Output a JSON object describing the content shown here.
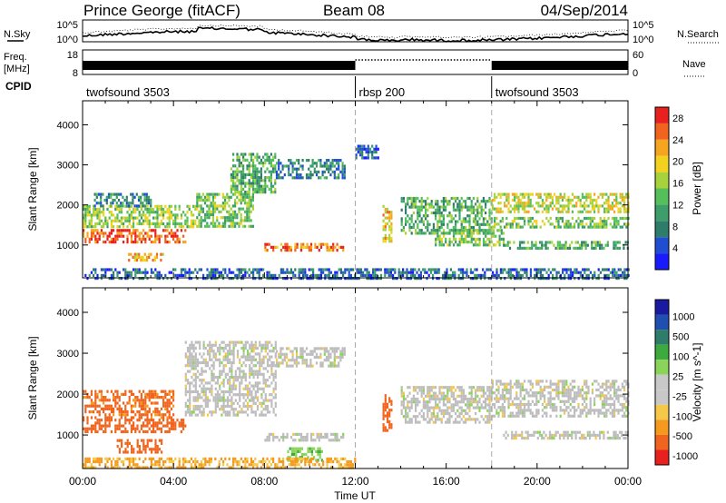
{
  "header": {
    "title": "Prince George (fitACF)",
    "beam": "Beam 08",
    "date": "04/Sep/2014"
  },
  "top_panels": {
    "nsky_label": "N.Sky",
    "nsearch_label": "N.Search",
    "noise_ticks": [
      "10^5",
      "10^0"
    ],
    "freq_label": "Freq.",
    "freq_unit": "[MHz]",
    "freq_ticks": [
      "18",
      "8"
    ],
    "nave_label": "Nave",
    "nave_ticks": [
      "60",
      "0"
    ],
    "cpid_label": "CPID",
    "cpid_segments": [
      {
        "label": "twofsound 3503",
        "start_h": 0,
        "end_h": 12
      },
      {
        "label": "rbsp 200",
        "start_h": 12,
        "end_h": 18
      },
      {
        "label": "twofsound 3503",
        "start_h": 18,
        "end_h": 24
      }
    ]
  },
  "time_axis": {
    "label": "Time UT",
    "ticks": [
      "00:00",
      "04:00",
      "08:00",
      "12:00",
      "16:00",
      "20:00",
      "00:00"
    ],
    "range_h": [
      0,
      24
    ]
  },
  "colors": {
    "power_scale": [
      "#1a1aff",
      "#1f4fd0",
      "#2e7d6a",
      "#3d9e6a",
      "#55c05a",
      "#a8d23c",
      "#f2d21e",
      "#f5a51e",
      "#f0641e",
      "#e8201e"
    ],
    "velocity_scale": [
      "#e8201e",
      "#f0641e",
      "#f59a1e",
      "#f5c84a",
      "#c8c8c8",
      "#c8c8c8",
      "#8ad45a",
      "#3daa3d",
      "#2e7d6a",
      "#1f4fb0",
      "#1a1aa0"
    ],
    "ground_scatter": "#bdbdbd"
  },
  "chart_data": [
    {
      "type": "heatmap",
      "name_role": "power-panel",
      "ylabel": "Slant Range [km]",
      "ylim": [
        180,
        4600
      ],
      "yticks": [
        1000,
        2000,
        3000,
        4000
      ],
      "x_unit": "hours UT",
      "colorbar_label": "Power [dB]",
      "colorbar_ticks": [
        "28",
        "24",
        "20",
        "16",
        "12",
        "8",
        "4"
      ],
      "colorbar_range": [
        0,
        30
      ],
      "echo_bands": [
        {
          "t0": 0.0,
          "t1": 4.5,
          "r0": 1050,
          "r1": 1400,
          "db": 26
        },
        {
          "t0": 0.0,
          "t1": 5.0,
          "r0": 1450,
          "r1": 2000,
          "db": 16
        },
        {
          "t0": 0.5,
          "t1": 3.0,
          "r0": 2000,
          "r1": 2300,
          "db": 8
        },
        {
          "t0": 2.0,
          "t1": 3.5,
          "r0": 600,
          "r1": 800,
          "db": 22
        },
        {
          "t0": 5.0,
          "t1": 7.5,
          "r0": 1500,
          "r1": 2300,
          "db": 14
        },
        {
          "t0": 6.5,
          "t1": 8.5,
          "r0": 2300,
          "r1": 3300,
          "db": 12
        },
        {
          "t0": 8.5,
          "t1": 11.5,
          "r0": 2700,
          "r1": 3150,
          "db": 8
        },
        {
          "t0": 8.0,
          "t1": 11.5,
          "r0": 850,
          "r1": 1050,
          "db": 24
        },
        {
          "t0": 12.0,
          "t1": 13.0,
          "r0": 3150,
          "r1": 3500,
          "db": 6
        },
        {
          "t0": 13.2,
          "t1": 13.6,
          "r0": 1100,
          "r1": 2000,
          "db": 20
        },
        {
          "t0": 14.0,
          "t1": 18.0,
          "r0": 1300,
          "r1": 2200,
          "db": 12
        },
        {
          "t0": 15.5,
          "t1": 18.5,
          "r0": 1000,
          "r1": 1400,
          "db": 14
        },
        {
          "t0": 18.0,
          "t1": 24.0,
          "r0": 1850,
          "r1": 2300,
          "db": 18
        },
        {
          "t0": 18.0,
          "t1": 24.0,
          "r0": 1450,
          "r1": 1700,
          "db": 14
        },
        {
          "t0": 18.5,
          "t1": 24.0,
          "r0": 900,
          "r1": 1100,
          "db": 12
        },
        {
          "t0": 0.0,
          "t1": 24.0,
          "r0": 180,
          "r1": 420,
          "db": 6
        }
      ]
    },
    {
      "type": "heatmap",
      "name_role": "velocity-panel",
      "ylabel": "Slant Range [km]",
      "ylim": [
        180,
        4600
      ],
      "yticks": [
        1000,
        2000,
        3000,
        4000
      ],
      "x_unit": "hours UT",
      "colorbar_label": "Velocity [m s^-1]",
      "colorbar_ticks": [
        "1000",
        "500",
        "100",
        "25",
        "-25",
        "-100",
        "-500",
        "-1000"
      ],
      "echo_bands": [
        {
          "t0": 0.0,
          "t1": 4.0,
          "r0": 1450,
          "r1": 2100,
          "v": -150
        },
        {
          "t0": 0.0,
          "t1": 4.5,
          "r0": 1050,
          "r1": 1400,
          "v": -300
        },
        {
          "t0": 1.5,
          "t1": 3.5,
          "r0": 600,
          "r1": 900,
          "v": -250
        },
        {
          "t0": 4.5,
          "t1": 8.5,
          "r0": 1500,
          "r1": 3300,
          "v": 0
        },
        {
          "t0": 8.5,
          "t1": 11.5,
          "r0": 2700,
          "r1": 3150,
          "v": 0
        },
        {
          "t0": 8.0,
          "t1": 11.5,
          "r0": 850,
          "r1": 1050,
          "v": 0
        },
        {
          "t0": 9.0,
          "t1": 10.5,
          "r0": 350,
          "r1": 700,
          "v": 80
        },
        {
          "t0": 13.2,
          "t1": 13.6,
          "r0": 1100,
          "r1": 2000,
          "v": -300
        },
        {
          "t0": 14.0,
          "t1": 18.0,
          "r0": 1300,
          "r1": 2200,
          "v": 0
        },
        {
          "t0": 18.0,
          "t1": 24.0,
          "r0": 1450,
          "r1": 2350,
          "v": 0
        },
        {
          "t0": 18.5,
          "t1": 24.0,
          "r0": 900,
          "r1": 1100,
          "v": 0
        },
        {
          "t0": 0.0,
          "t1": 12.0,
          "r0": 180,
          "r1": 450,
          "v": -60
        }
      ]
    }
  ]
}
